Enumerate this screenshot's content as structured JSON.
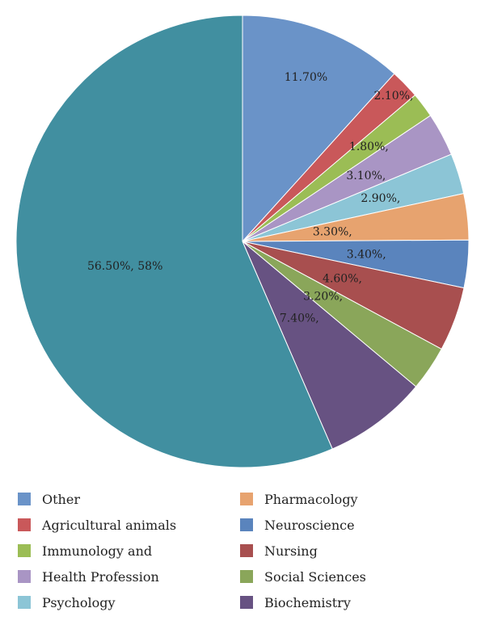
{
  "chart_data": {
    "type": "pie",
    "start_angle_deg": 0,
    "direction": "clockwise",
    "slices": [
      {
        "legend": "Other",
        "value": 11.7,
        "label": "11.70%",
        "color": "#6a93c8"
      },
      {
        "legend": "Agricultural animals",
        "value": 2.1,
        "label": "2.10%,",
        "color": "#c9585a"
      },
      {
        "legend": "Immunology and",
        "value": 1.8,
        "label": "1.80%,",
        "color": "#9bbd55"
      },
      {
        "legend": "Health Profession",
        "value": 3.1,
        "label": "3.10%,",
        "color": "#a995c4"
      },
      {
        "legend": "Psychology",
        "value": 2.9,
        "label": "2.90%,",
        "color": "#8cc5d6"
      },
      {
        "legend": "Pharmacology",
        "value": 3.3,
        "label": "3.30%,",
        "color": "#e7a36f"
      },
      {
        "legend": "Neuroscience",
        "value": 3.4,
        "label": "3.40%,",
        "color": "#5a84bd"
      },
      {
        "legend": "Nursing",
        "value": 4.6,
        "label": "4.60%,",
        "color": "#a84f4f"
      },
      {
        "legend": "Social Sciences",
        "value": 3.2,
        "label": "3.20%,",
        "color": "#8aa65a"
      },
      {
        "legend": "Biochemistry",
        "value": 7.4,
        "label": "7.40%,",
        "color": "#675282"
      },
      {
        "legend": "",
        "value": 56.5,
        "label": "56.50%, 58%",
        "color": "#418fa0"
      }
    ],
    "legend_position": "bottom"
  }
}
